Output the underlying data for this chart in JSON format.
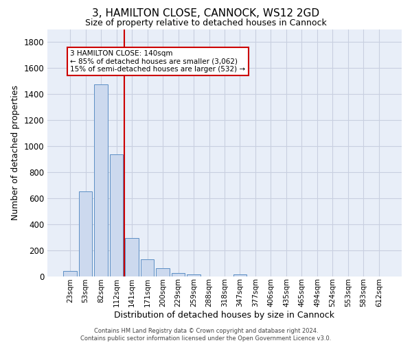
{
  "title": "3, HAMILTON CLOSE, CANNOCK, WS12 2GD",
  "subtitle": "Size of property relative to detached houses in Cannock",
  "xlabel": "Distribution of detached houses by size in Cannock",
  "ylabel": "Number of detached properties",
  "bar_color": "#ccd9ee",
  "bar_edge_color": "#5b8ec4",
  "categories": [
    "23sqm",
    "53sqm",
    "82sqm",
    "112sqm",
    "141sqm",
    "171sqm",
    "200sqm",
    "229sqm",
    "259sqm",
    "288sqm",
    "318sqm",
    "347sqm",
    "377sqm",
    "406sqm",
    "435sqm",
    "465sqm",
    "494sqm",
    "524sqm",
    "553sqm",
    "583sqm",
    "612sqm"
  ],
  "values": [
    38,
    652,
    1474,
    938,
    293,
    128,
    63,
    22,
    12,
    0,
    0,
    12,
    0,
    0,
    0,
    0,
    0,
    0,
    0,
    0,
    0
  ],
  "ylim": [
    0,
    1900
  ],
  "yticks": [
    0,
    200,
    400,
    600,
    800,
    1000,
    1200,
    1400,
    1600,
    1800
  ],
  "annotation_text": "3 HAMILTON CLOSE: 140sqm\n← 85% of detached houses are smaller (3,062)\n15% of semi-detached houses are larger (532) →",
  "annotation_box_color": "#ffffff",
  "annotation_border_color": "#cc0000",
  "footer_line1": "Contains HM Land Registry data © Crown copyright and database right 2024.",
  "footer_line2": "Contains public sector information licensed under the Open Government Licence v3.0.",
  "grid_color": "#c8cfe0",
  "bg_color": "#e8eef8",
  "fig_bg_color": "#ffffff",
  "red_line_color": "#cc0000",
  "title_fontsize": 11,
  "subtitle_fontsize": 9,
  "tick_fontsize": 7.5,
  "ylabel_fontsize": 9,
  "xlabel_fontsize": 9
}
